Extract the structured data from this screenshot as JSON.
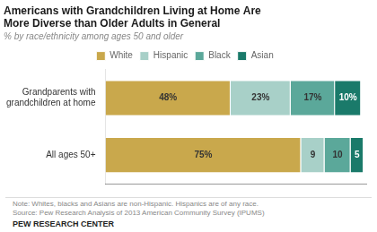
{
  "chart_data": {
    "type": "bar",
    "orientation": "horizontal",
    "stacked": true,
    "title": "Americans with Grandchildren Living at Home Are\nMore Diverse than Older Adults in General",
    "subtitle": "% by race/ethnicity among ages 50 and older",
    "annotations": [
      "Note: Whites, blacks and Asians are non-Hispanic. Hispanics are of any race.\nSource: Pew Research Analysis of 2013 American Community Survey (IPUMS)",
      "PEW RESEARCH CENTER"
    ],
    "categories": [
      "Grandparents with\ngrandchildren at home",
      "All ages 50+"
    ],
    "series": [
      {
        "name": "White",
        "color": "#C9A84C",
        "values": [
          48,
          75
        ],
        "value_labels": [
          "48%",
          "75%"
        ]
      },
      {
        "name": "Hispanic",
        "color": "#A8D0C8",
        "values": [
          23,
          9
        ],
        "value_labels": [
          "23%",
          "9"
        ]
      },
      {
        "name": "Black",
        "color": "#5BA89A",
        "values": [
          17,
          10
        ],
        "value_labels": [
          "17%",
          "10"
        ]
      },
      {
        "name": "Asian",
        "color": "#1A7A6A",
        "values": [
          10,
          5
        ],
        "value_labels": [
          "10%",
          "5"
        ]
      }
    ],
    "xlim": [
      0,
      100
    ],
    "grid": false,
    "legend": "top",
    "data_labels": true,
    "tick_labels": "y"
  }
}
